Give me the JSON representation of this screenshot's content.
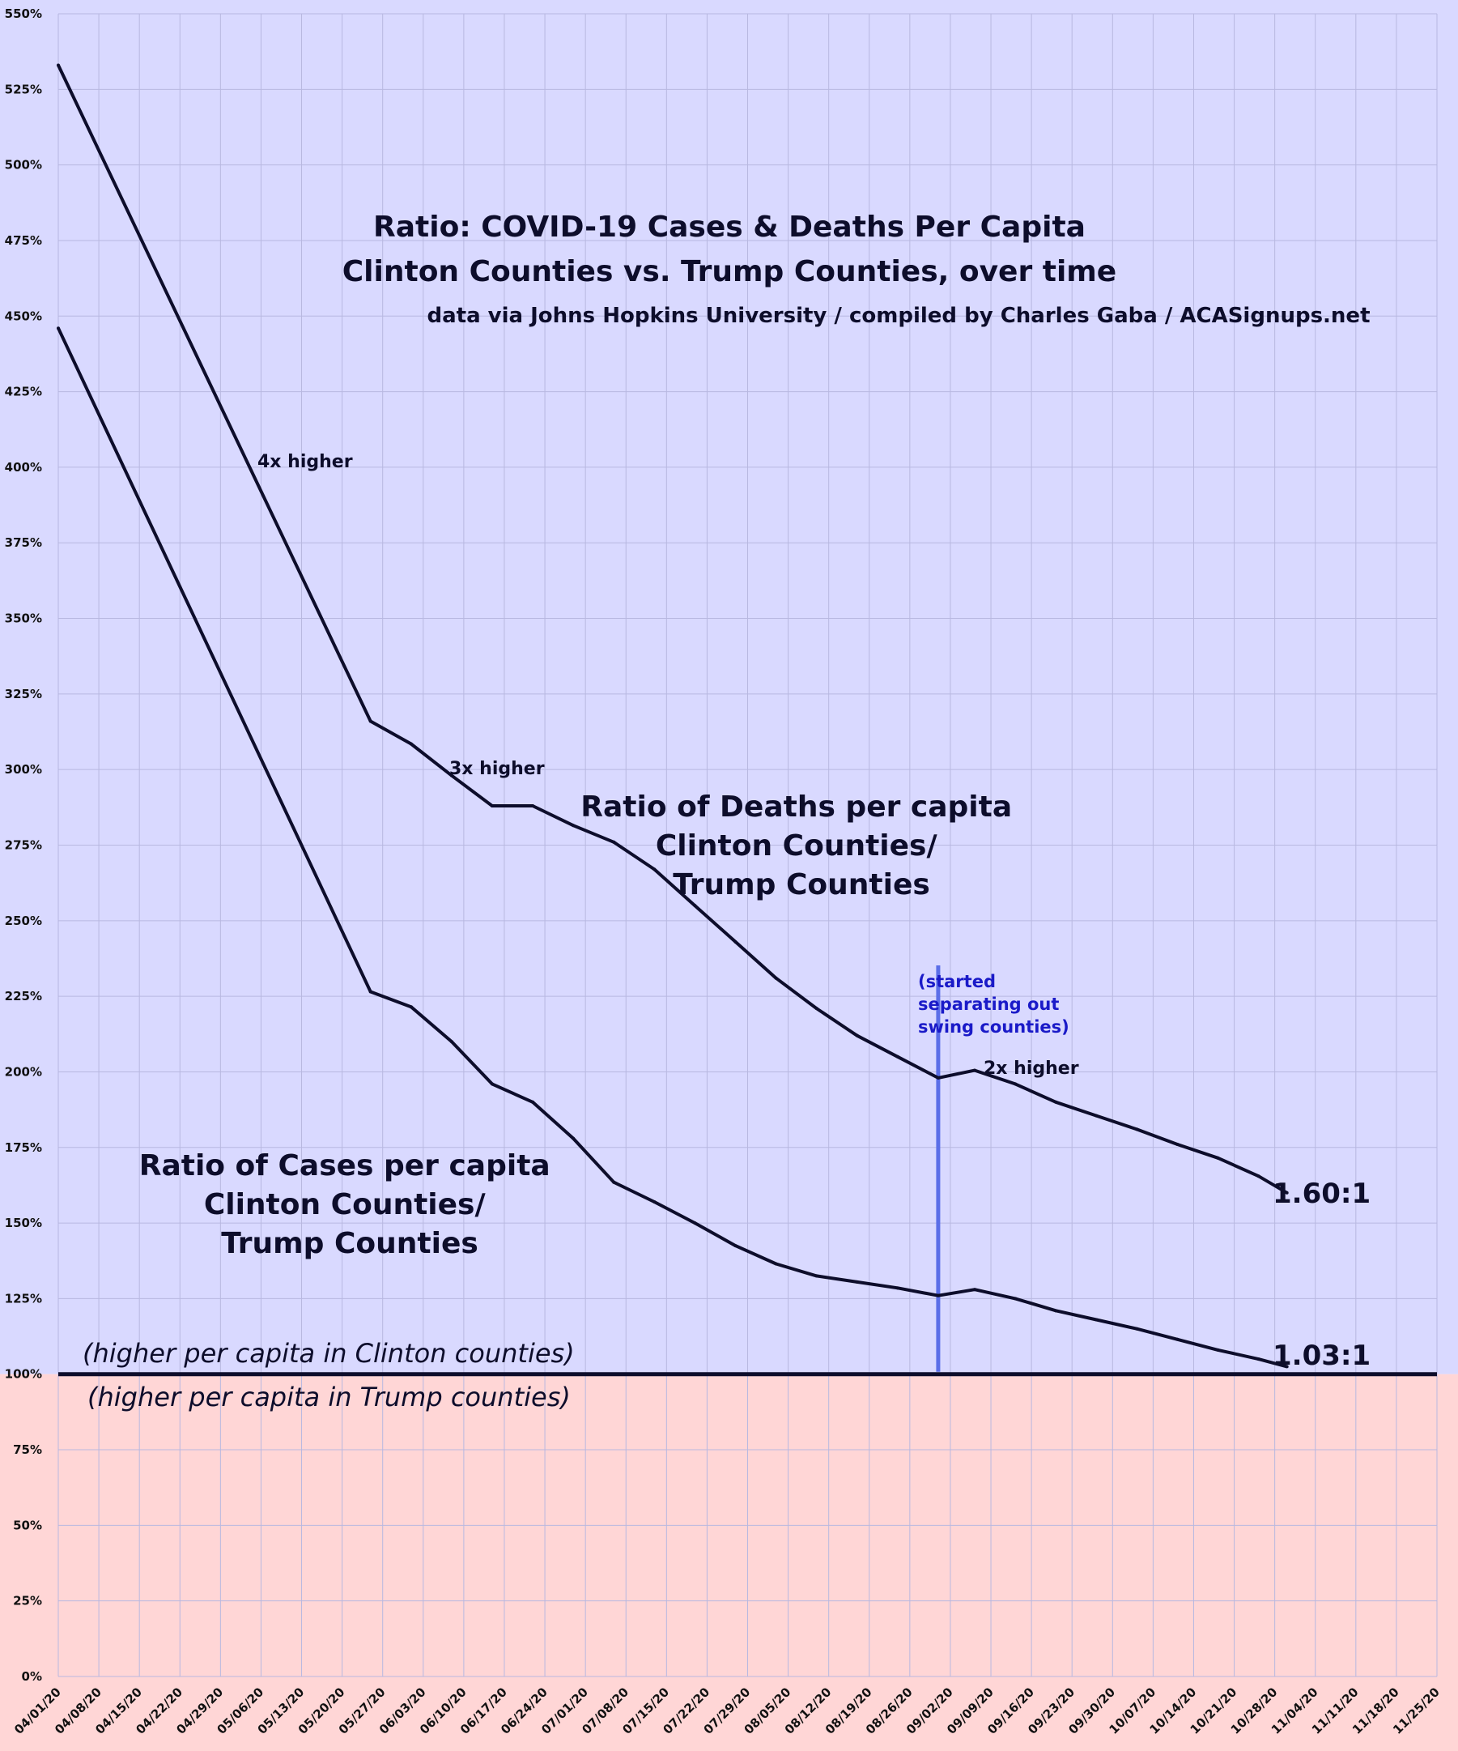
{
  "chart_data": {
    "type": "line",
    "title": "Ratio: COVID-19 Cases & Deaths Per Capita",
    "subtitle": "Clinton Counties vs. Trump Counties, over time",
    "source": "data via Johns Hopkins University / compiled by Charles Gaba / ACASignups.net",
    "ylim": [
      0,
      550
    ],
    "y_ticks": [
      "0%",
      "25%",
      "50%",
      "75%",
      "100%",
      "125%",
      "150%",
      "175%",
      "200%",
      "225%",
      "250%",
      "275%",
      "300%",
      "325%",
      "350%",
      "375%",
      "400%",
      "425%",
      "450%",
      "475%",
      "500%",
      "525%",
      "550%"
    ],
    "categories": [
      "04/01/20",
      "04/08/20",
      "04/15/20",
      "04/22/20",
      "04/29/20",
      "05/06/20",
      "05/13/20",
      "05/20/20",
      "05/27/20",
      "06/03/20",
      "06/10/20",
      "06/17/20",
      "06/24/20",
      "07/01/20",
      "07/08/20",
      "07/15/20",
      "07/22/20",
      "07/29/20",
      "08/05/20",
      "08/12/20",
      "08/19/20",
      "08/26/20",
      "09/02/20",
      "09/09/20",
      "09/16/20",
      "09/23/20",
      "09/30/20",
      "10/07/20",
      "10/14/20",
      "10/21/20",
      "10/28/20",
      "11/04/20",
      "11/11/20",
      "11/18/20",
      "11/25/20"
    ],
    "series": [
      {
        "name": "Ratio of Deaths per capita Clinton Counties/ Trump Counties",
        "label_lines": [
          "Ratio of Deaths per capita",
          "Clinton Counties/",
          "Trump Counties"
        ],
        "points": [
          [
            0,
            533
          ],
          [
            7.7,
            316
          ],
          [
            8.7,
            308.5
          ],
          [
            9.7,
            298
          ],
          [
            10.7,
            288
          ],
          [
            11.7,
            288
          ],
          [
            12.7,
            281.5
          ],
          [
            13.7,
            276
          ],
          [
            14.7,
            267
          ],
          [
            15.7,
            255
          ],
          [
            16.7,
            243
          ],
          [
            17.7,
            231
          ],
          [
            18.7,
            221
          ],
          [
            19.7,
            212
          ],
          [
            20.7,
            205
          ],
          [
            21.7,
            198
          ],
          [
            22.6,
            200.5
          ],
          [
            23.6,
            196
          ],
          [
            24.6,
            190
          ],
          [
            25.6,
            185.5
          ],
          [
            26.6,
            181
          ],
          [
            27.6,
            176
          ],
          [
            28.6,
            171.5
          ],
          [
            29.6,
            165.5
          ],
          [
            30.3,
            160
          ]
        ],
        "end_label": "1.60:1"
      },
      {
        "name": "Ratio of Cases per capita Clinton Counties/ Trump Counties",
        "label_lines": [
          "Ratio of Cases per capita",
          "Clinton Counties/",
          "Trump Counties"
        ],
        "points": [
          [
            0,
            446
          ],
          [
            7.7,
            226.5
          ],
          [
            8.7,
            221.5
          ],
          [
            9.7,
            210
          ],
          [
            10.7,
            196
          ],
          [
            11.7,
            190
          ],
          [
            12.7,
            178
          ],
          [
            13.7,
            163.5
          ],
          [
            14.7,
            157
          ],
          [
            15.7,
            150
          ],
          [
            16.7,
            142.5
          ],
          [
            17.7,
            136.5
          ],
          [
            18.7,
            132.5
          ],
          [
            19.7,
            130.5
          ],
          [
            20.7,
            128.5
          ],
          [
            21.7,
            126
          ],
          [
            22.6,
            128
          ],
          [
            23.6,
            125
          ],
          [
            24.6,
            121
          ],
          [
            25.6,
            118
          ],
          [
            26.6,
            115
          ],
          [
            27.6,
            111.5
          ],
          [
            28.6,
            108
          ],
          [
            29.6,
            105
          ],
          [
            30.3,
            102.5
          ]
        ],
        "end_label": "1.03:1"
      }
    ],
    "baseline": 100,
    "marker_x": 21.7,
    "annotations": [
      {
        "text": "4x higher",
        "x": 5.1,
        "y": 400
      },
      {
        "text": "3x higher",
        "x": 10.7,
        "y": 299
      },
      {
        "text": "2x higher",
        "x": 24.0,
        "y": 200
      },
      {
        "text_lines": [
          "(started",
          "separating out",
          "swing counties)"
        ],
        "x": 21.8,
        "y": 228
      }
    ],
    "region_labels": {
      "above": "(higher per capita in Clinton counties)",
      "below": "(higher per capita in Trump counties)"
    },
    "colors": {
      "bg_above": "#d9d9ff",
      "bg_below": "#ffd6d6",
      "grid": "#b8b8e0",
      "line": "#0d0d2b",
      "marker": "#5b6ee8",
      "swing_text": "#1a1ac8"
    },
    "grid": true
  }
}
